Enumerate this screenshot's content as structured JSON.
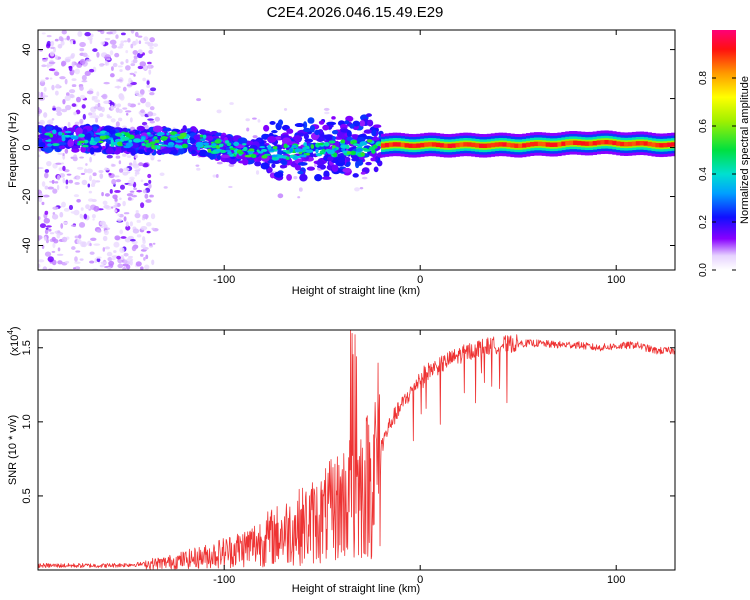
{
  "title": "C2E4.2026.046.15.49.E29",
  "colors": {
    "snr_line": "#ee3333",
    "axis": "#000000"
  },
  "chart_data": [
    {
      "type": "heatmap",
      "title": "C2E4.2026.046.15.49.E29",
      "xlabel": "Height of straight line (km)",
      "ylabel": "Frequency (Hz)",
      "xlim": [
        -195,
        130
      ],
      "ylim": [
        -50,
        48
      ],
      "xticks": [
        -100,
        0,
        100
      ],
      "xtick_labels": [
        "-100",
        "0",
        "100"
      ],
      "yticks": [
        -40,
        -20,
        0,
        20,
        40
      ],
      "ytick_labels": [
        "-40",
        "-20",
        "0",
        "20",
        "40"
      ],
      "colorbar": {
        "label": "Normalized spectral amplitude",
        "range": [
          0,
          1
        ],
        "ticks": [
          0.0,
          0.2,
          0.4,
          0.6,
          0.8
        ],
        "tick_labels": [
          "0.0",
          "0.2",
          "0.4",
          "0.6",
          "0.8"
        ]
      },
      "ridge": {
        "description_points_km_hz": [
          [
            -195,
            4
          ],
          [
            -150,
            3
          ],
          [
            -120,
            3
          ],
          [
            -100,
            0
          ],
          [
            -80,
            -2
          ],
          [
            -60,
            -1
          ],
          [
            -40,
            0
          ],
          [
            -25,
            0
          ],
          [
            -20,
            1
          ],
          [
            0,
            1
          ],
          [
            50,
            1
          ],
          [
            90,
            2
          ],
          [
            130,
            1
          ]
        ],
        "strong_segment_km": [
          -20,
          130
        ]
      }
    },
    {
      "type": "line",
      "xlabel": "Height of straight line (km)",
      "ylabel": "SNR (10 * v/v)",
      "yscale_label": "(x10",
      "yscale_exp": "4",
      "yscale_close": ")",
      "xlim": [
        -195,
        130
      ],
      "ylim": [
        0,
        1.62
      ],
      "xticks": [
        -100,
        0,
        100
      ],
      "xtick_labels": [
        "-100",
        "0",
        "100"
      ],
      "yticks": [
        0.5,
        1.0,
        1.5
      ],
      "ytick_labels": [
        "0.5",
        "1.0",
        "1.5"
      ],
      "series": [
        {
          "name": "SNR",
          "x": [
            -195,
            -180,
            -160,
            -140,
            -130,
            -120,
            -110,
            -100,
            -90,
            -80,
            -70,
            -60,
            -50,
            -45,
            -40,
            -35,
            -30,
            -25,
            -22,
            -18,
            -15,
            -10,
            -5,
            0,
            5,
            10,
            15,
            20,
            30,
            40,
            50,
            60,
            70,
            80,
            90,
            100,
            110,
            120,
            130
          ],
          "y": [
            0.03,
            0.03,
            0.03,
            0.04,
            0.05,
            0.07,
            0.09,
            0.12,
            0.15,
            0.2,
            0.25,
            0.3,
            0.35,
            0.4,
            0.45,
            0.5,
            0.55,
            0.6,
            0.75,
            0.9,
            1.0,
            1.1,
            1.2,
            1.3,
            1.35,
            1.38,
            1.42,
            1.45,
            1.5,
            1.52,
            1.53,
            1.53,
            1.52,
            1.52,
            1.5,
            1.51,
            1.52,
            1.48,
            1.48
          ]
        }
      ]
    }
  ]
}
